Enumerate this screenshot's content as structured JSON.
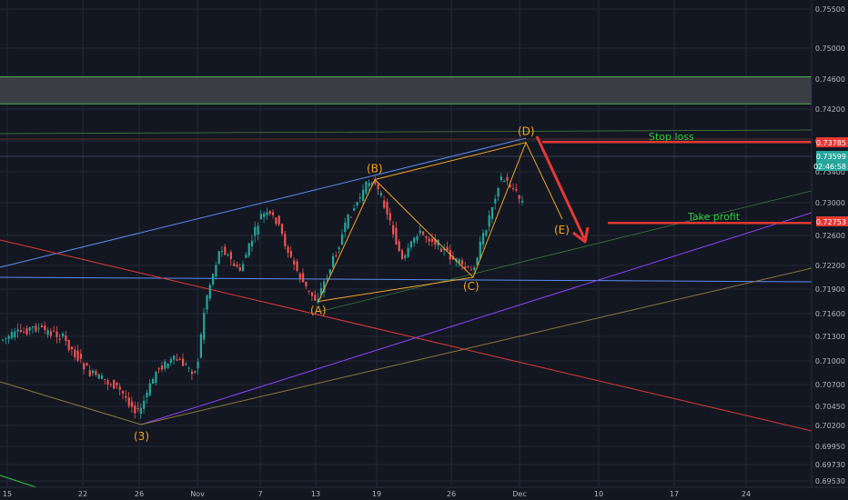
{
  "chart_data": {
    "type": "candlestick",
    "y_ticks": [
      "0.75500",
      "0.75000",
      "0.74600",
      "0.74200",
      "0.73800",
      "0.73400",
      "0.73000",
      "0.72600",
      "0.72200",
      "0.71900",
      "0.71600",
      "0.71300",
      "0.71000",
      "0.70700",
      "0.70450",
      "0.70200",
      "0.69950",
      "0.69730",
      "0.69530"
    ],
    "x_ticks": [
      "15",
      "22",
      "26",
      "Nov",
      "7",
      "13",
      "19",
      "26",
      "Dec",
      "10",
      "17",
      "24"
    ],
    "ylim": [
      0.6945,
      0.7575
    ],
    "price_tags": [
      {
        "value": "0.73785",
        "color": "#e53935"
      },
      {
        "value": "0.73599",
        "color": "#26a69a"
      },
      {
        "value": "02:46:58",
        "color": "#26a69a"
      },
      {
        "value": "0.72753",
        "color": "#e53935"
      }
    ],
    "wave_labels": [
      "(3)",
      "(A)",
      "(B)",
      "(C)",
      "(D)",
      "(E)"
    ],
    "wave_points": {
      "(3)": 0.702,
      "(A)": 0.7175,
      "(B)": 0.733,
      "(C)": 0.7205,
      "(D)": 0.7378,
      "(E)": 0.728
    },
    "annotations": {
      "stop_loss": "Stop loss",
      "take_profit": "Take profit"
    },
    "levels": {
      "stop_loss": 0.73785,
      "take_profit": 0.72753,
      "zone_top": 0.7463,
      "zone_bottom": 0.7427
    },
    "colors": {
      "up": "#26a69a",
      "down": "#ef5350",
      "wave": "#f5a623",
      "trend_red": "#e53935",
      "blue": "#5b8def",
      "purple": "#8e44ff",
      "note_green": "#2ecc40"
    }
  }
}
